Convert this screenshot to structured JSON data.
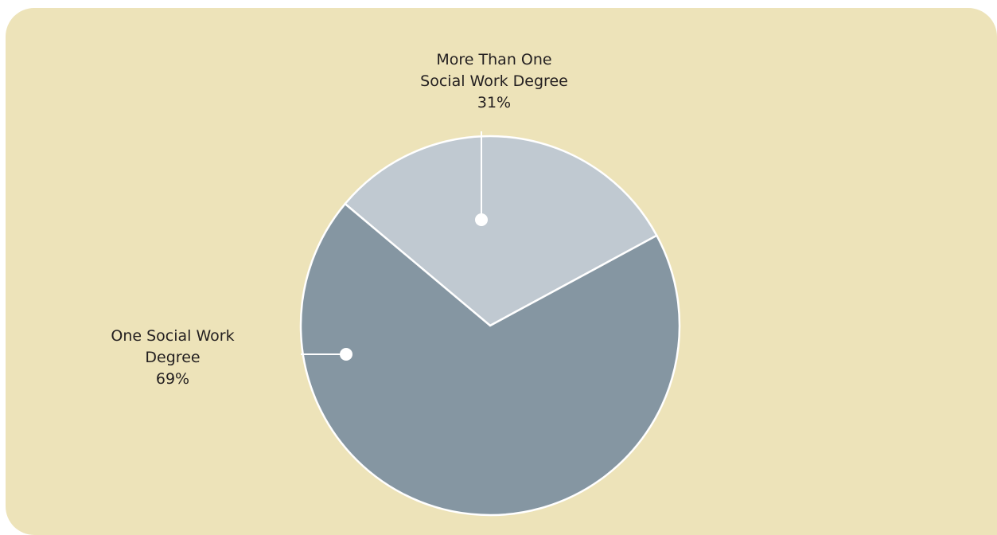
{
  "colors": {
    "panel_background": "#ede3b9",
    "one_degree_slice": "#8596a2",
    "more_than_one_slice": "#c0c9d1",
    "leader_lines": "#ffffff"
  },
  "chart_data": {
    "type": "pie",
    "title": "",
    "slices": [
      {
        "category": "More Than One Social Work Degree",
        "value": 31,
        "label_lines": [
          "More Than One",
          "Social Work Degree",
          "31%"
        ],
        "color": "#c0c9d1"
      },
      {
        "category": "One Social Work Degree",
        "value": 69,
        "label_lines": [
          "One Social Work",
          "Degree",
          "69%"
        ],
        "color": "#8596a2"
      }
    ],
    "legend": "none",
    "label_style": "callout with leader line"
  }
}
